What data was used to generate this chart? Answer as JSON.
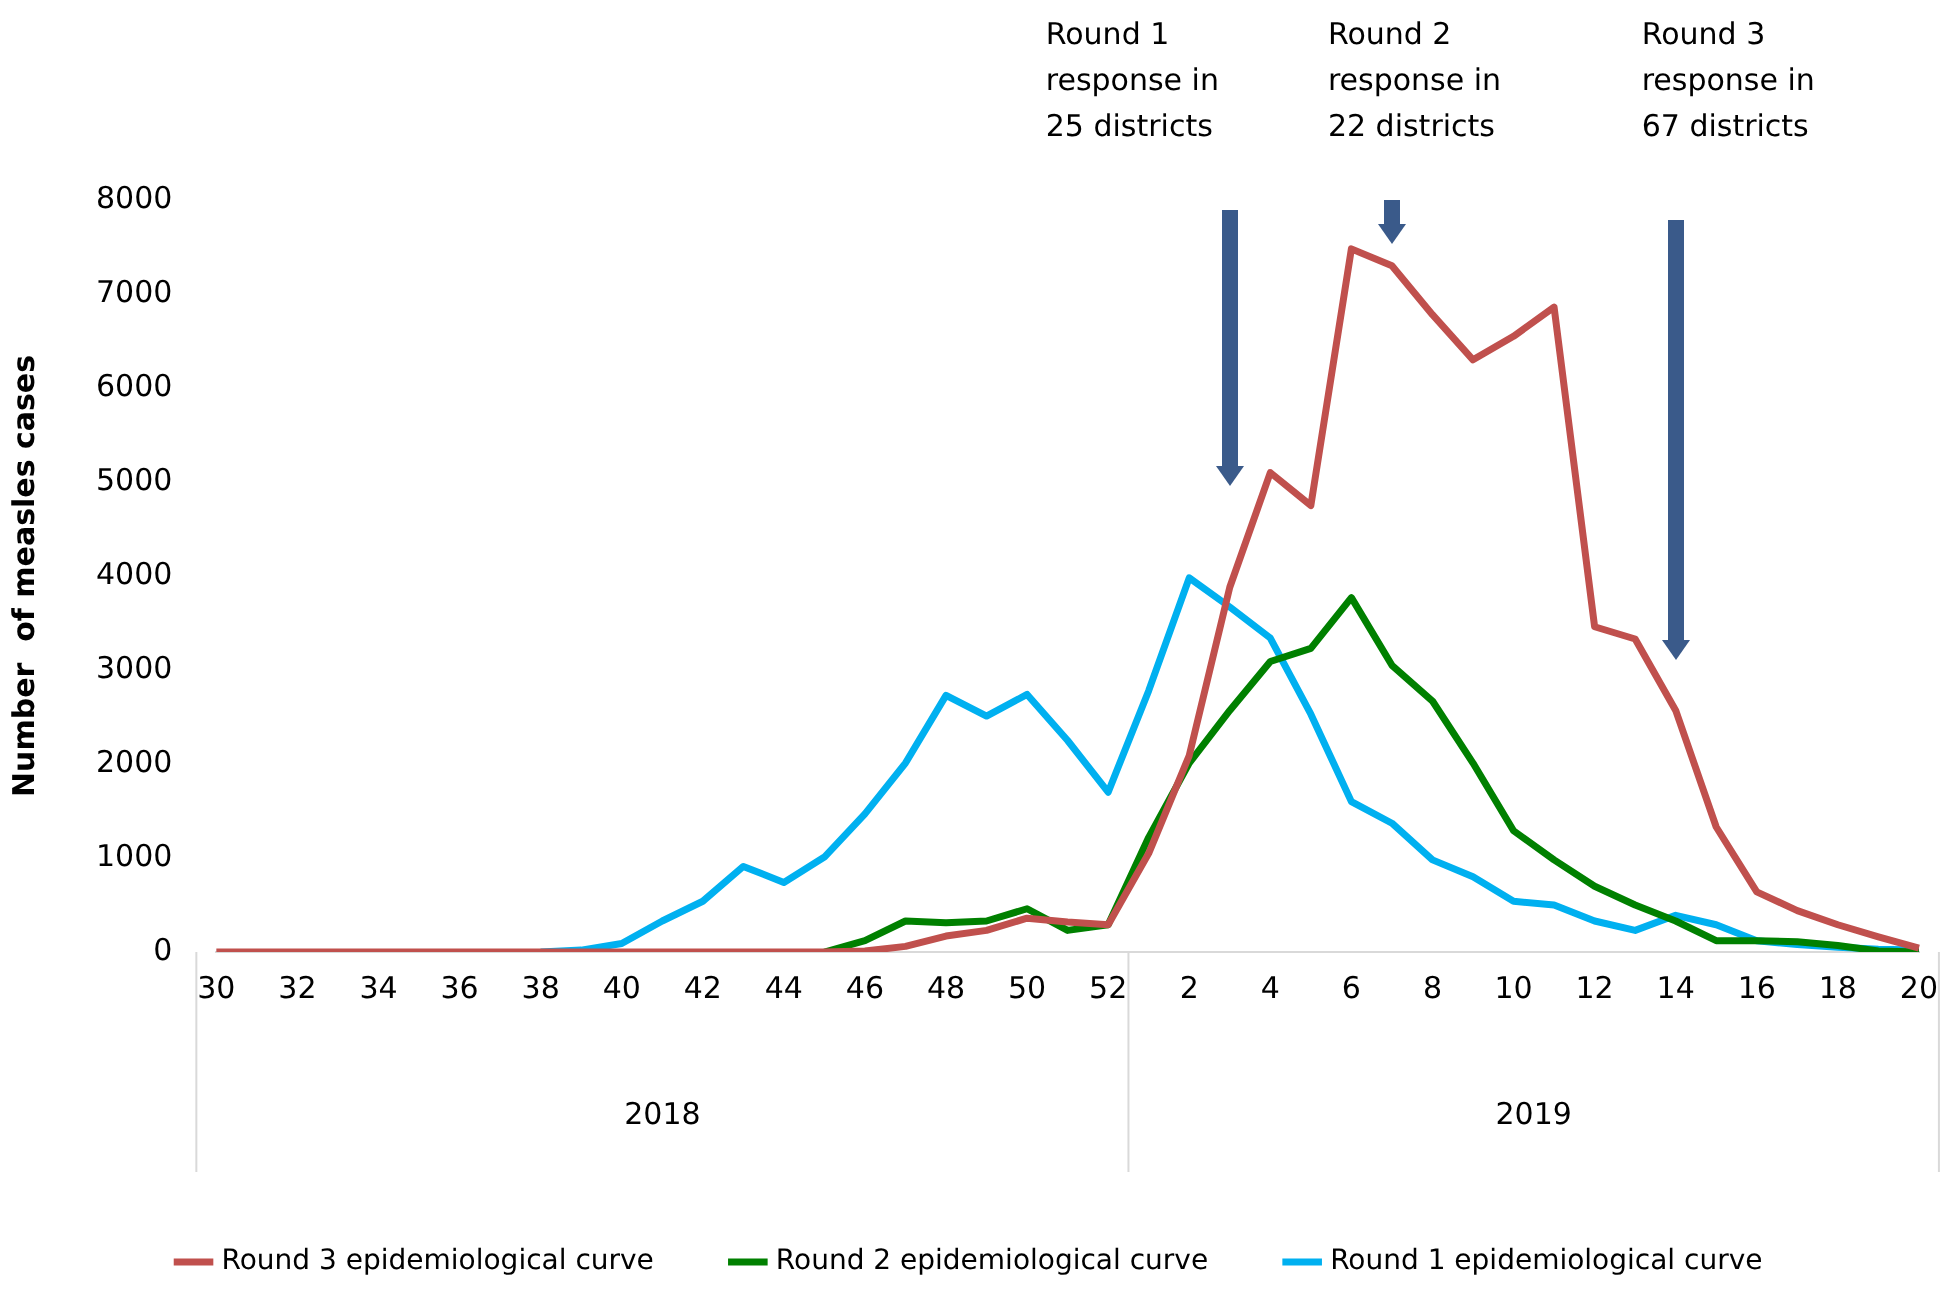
{
  "chart_data": {
    "type": "line",
    "ylabel": "Number  of measles cases",
    "categories": [
      "30",
      null,
      "32",
      null,
      "34",
      null,
      "36",
      null,
      "38",
      null,
      "40",
      null,
      "42",
      null,
      "44",
      null,
      "46",
      null,
      "48",
      null,
      "50",
      null,
      "52",
      null,
      "2",
      null,
      "4",
      null,
      "6",
      null,
      "8",
      null,
      "10",
      null,
      "12",
      null,
      "14",
      null,
      "16",
      null,
      "18",
      null,
      "20"
    ],
    "series": [
      {
        "name": "Round 1 epidemiological curve",
        "color": "#00b0f0",
        "values": [
          null,
          null,
          null,
          null,
          null,
          null,
          null,
          null,
          0,
          20,
          90,
          330,
          540,
          910,
          740,
          1010,
          1470,
          2010,
          2730,
          2510,
          2740,
          2250,
          1700,
          2780,
          3980,
          3670,
          3340,
          2530,
          1600,
          1370,
          980,
          800,
          540,
          500,
          330,
          230,
          390,
          290,
          120,
          80,
          50,
          30,
          20
        ]
      },
      {
        "name": "Round 2 epidemiological curve",
        "color": "#008000",
        "values": [
          null,
          null,
          null,
          null,
          null,
          null,
          null,
          null,
          null,
          null,
          null,
          null,
          null,
          null,
          null,
          0,
          120,
          330,
          310,
          330,
          460,
          230,
          290,
          1220,
          2010,
          2570,
          3090,
          3230,
          3770,
          3050,
          2670,
          2010,
          1290,
          980,
          700,
          500,
          330,
          120,
          120,
          110,
          70,
          10,
          0
        ]
      },
      {
        "name": "Round 3 epidemiological curve",
        "color": "#c0504d",
        "values": [
          0,
          0,
          0,
          0,
          0,
          0,
          0,
          0,
          0,
          0,
          0,
          0,
          0,
          0,
          0,
          0,
          10,
          60,
          170,
          230,
          360,
          320,
          290,
          1050,
          2090,
          3880,
          5100,
          4750,
          7480,
          7300,
          6780,
          6300,
          6550,
          6860,
          3460,
          3330,
          2570,
          1330,
          640,
          440,
          290,
          160,
          40
        ]
      }
    ],
    "ylim": [
      0,
      8000
    ],
    "yticks": [
      0,
      1000,
      2000,
      3000,
      4000,
      5000,
      6000,
      7000,
      8000
    ],
    "grid": false,
    "legend": "bottom",
    "marker": "none",
    "line_style": "solid",
    "annotations": [
      "Round 1 response in 25 districts",
      "Round 2 response in 22 districts",
      "Round 3 response in 67 districts",
      "2018",
      "2019"
    ]
  }
}
